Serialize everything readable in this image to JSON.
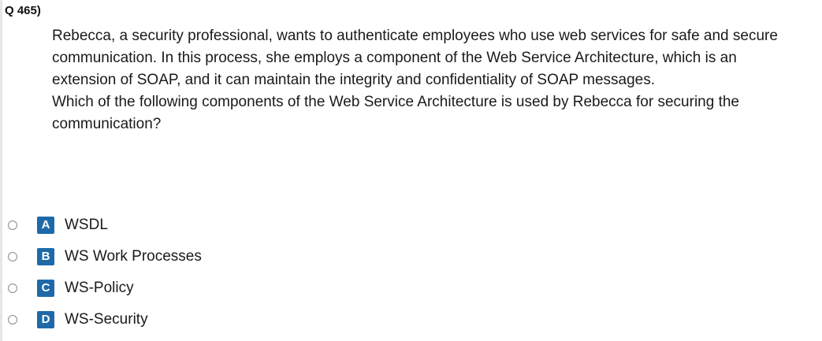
{
  "question": {
    "number": "Q 465)",
    "paragraph1": "Rebecca, a security professional, wants to authenticate employees who use web services for safe and secure communication. In this process, she employs a component of the Web Service Architecture, which is an extension of SOAP, and it can maintain the integrity and confidentiality of SOAP messages.",
    "paragraph2": "Which of the following components of the Web Service Architecture is used by Rebecca for securing the communication?"
  },
  "options": [
    {
      "letter": "A",
      "label": "WSDL"
    },
    {
      "letter": "B",
      "label": "WS Work Processes"
    },
    {
      "letter": "C",
      "label": "WS-Policy"
    },
    {
      "letter": "D",
      "label": "WS-Security"
    }
  ],
  "colors": {
    "badge": "#1e6aa8",
    "text": "#1a1a1a"
  },
  "icons": {
    "radio": "radio-button-icon"
  }
}
